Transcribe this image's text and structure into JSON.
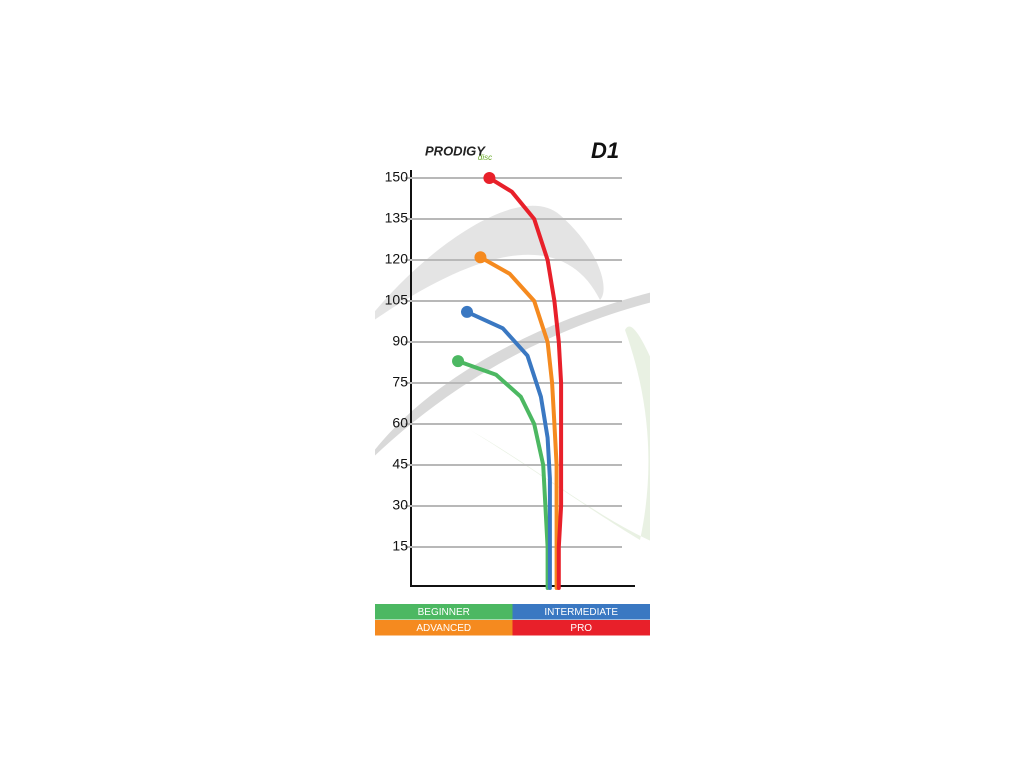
{
  "chart_data": {
    "type": "line",
    "title": "D1",
    "brand": "PRODIGY",
    "brand_subtext": "disc",
    "xlim": [
      0,
      100
    ],
    "ylim": [
      0,
      150
    ],
    "yticks": [
      15,
      30,
      45,
      60,
      75,
      90,
      105,
      120,
      135,
      150
    ],
    "grid": true,
    "series": [
      {
        "name": "BEGINNER",
        "color": "#4cb862",
        "x": [
          21,
          38,
          49,
          55,
          59,
          60,
          61,
          61
        ],
        "values": [
          83,
          78,
          70,
          60,
          45,
          30,
          15,
          0
        ]
      },
      {
        "name": "INTERMEDIATE",
        "color": "#3a78c2",
        "x": [
          25,
          41,
          52,
          58,
          61,
          62,
          62,
          62
        ],
        "values": [
          101,
          95,
          85,
          70,
          55,
          40,
          20,
          0
        ]
      },
      {
        "name": "ADVANCED",
        "color": "#f58a1f",
        "x": [
          31,
          44,
          55,
          61,
          63,
          64,
          65,
          65,
          65,
          65
        ],
        "values": [
          121,
          115,
          105,
          90,
          75,
          60,
          45,
          30,
          15,
          0
        ]
      },
      {
        "name": "PRO",
        "color": "#e8202a",
        "x": [
          35,
          45,
          55,
          61,
          64,
          66,
          67,
          67,
          67,
          67,
          66,
          66
        ],
        "values": [
          150,
          145,
          135,
          120,
          105,
          90,
          75,
          60,
          45,
          30,
          15,
          0
        ]
      }
    ]
  }
}
